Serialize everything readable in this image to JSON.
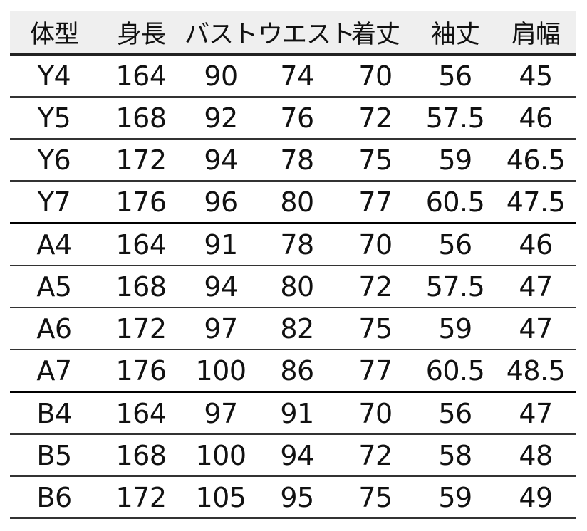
{
  "table": {
    "headers": [
      "体型",
      "身長",
      "バスト",
      "ウエスト",
      "着丈",
      "袖丈",
      "肩幅"
    ],
    "rows": [
      [
        "Y4",
        "164",
        "90",
        "74",
        "70",
        "56",
        "45"
      ],
      [
        "Y5",
        "168",
        "92",
        "76",
        "72",
        "57.5",
        "46"
      ],
      [
        "Y6",
        "172",
        "94",
        "78",
        "75",
        "59",
        "46.5"
      ],
      [
        "Y7",
        "176",
        "96",
        "80",
        "77",
        "60.5",
        "47.5"
      ],
      [
        "A4",
        "164",
        "91",
        "78",
        "70",
        "56",
        "46"
      ],
      [
        "A5",
        "168",
        "94",
        "80",
        "72",
        "57.5",
        "47"
      ],
      [
        "A6",
        "172",
        "97",
        "82",
        "75",
        "59",
        "47"
      ],
      [
        "A7",
        "176",
        "100",
        "86",
        "77",
        "60.5",
        "48.5"
      ],
      [
        "B4",
        "164",
        "97",
        "91",
        "70",
        "56",
        "47"
      ],
      [
        "B5",
        "168",
        "100",
        "94",
        "72",
        "58",
        "48"
      ],
      [
        "B6",
        "172",
        "105",
        "95",
        "75",
        "59",
        "49"
      ]
    ]
  }
}
